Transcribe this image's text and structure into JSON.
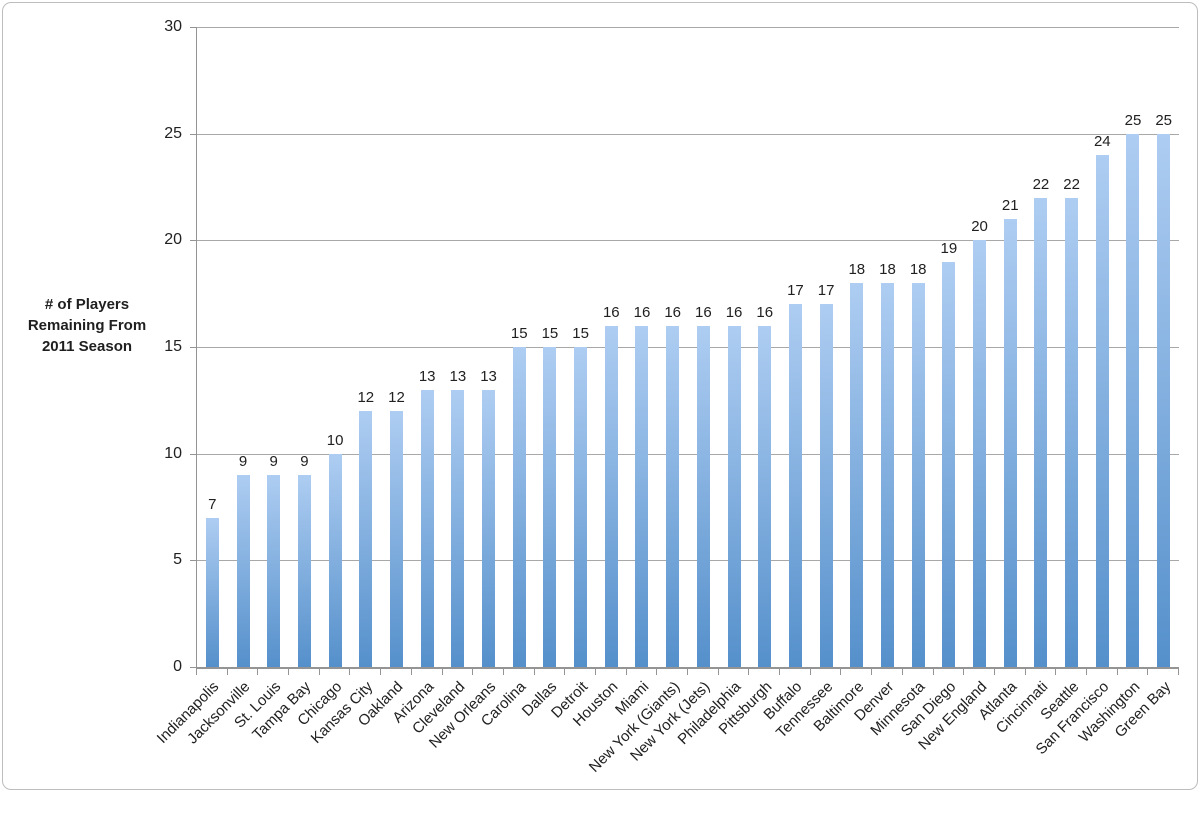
{
  "chart_data": {
    "type": "bar",
    "title": "",
    "ylabel": "# of Players\nRemaining From\n2011 Season",
    "xlabel": "",
    "categories": [
      "Indianapolis",
      "Jacksonville",
      "St. Louis",
      "Tampa Bay",
      "Chicago",
      "Kansas City",
      "Oakland",
      "Arizona",
      "Cleveland",
      "New Orleans",
      "Carolina",
      "Dallas",
      "Detroit",
      "Houston",
      "Miami",
      "New York (Giants)",
      "New York (Jets)",
      "Philadelphia",
      "Pittsburgh",
      "Buffalo",
      "Tennessee",
      "Baltimore",
      "Denver",
      "Minnesota",
      "San Diego",
      "New England",
      "Atlanta",
      "Cincinnati",
      "Seattle",
      "San Francisco",
      "Washington",
      "Green Bay"
    ],
    "values": [
      7,
      9,
      9,
      9,
      10,
      12,
      12,
      13,
      13,
      13,
      15,
      15,
      15,
      16,
      16,
      16,
      16,
      16,
      16,
      17,
      17,
      18,
      18,
      18,
      19,
      20,
      21,
      22,
      22,
      24,
      25,
      25
    ],
    "ylim": [
      0,
      30
    ],
    "y_ticks": [
      0,
      5,
      10,
      15,
      20,
      25,
      30
    ],
    "grid": "horizontal",
    "legend": "none",
    "data_labels": "above bars",
    "colors": {
      "bar_gradient_top": "#aecdf2",
      "bar_gradient_bottom": "#5590cb",
      "gridline": "#a8a8a8",
      "axis": "#949494",
      "text": "#212121",
      "frame_border": "#bdbdbd",
      "background": "#ffffff"
    }
  }
}
